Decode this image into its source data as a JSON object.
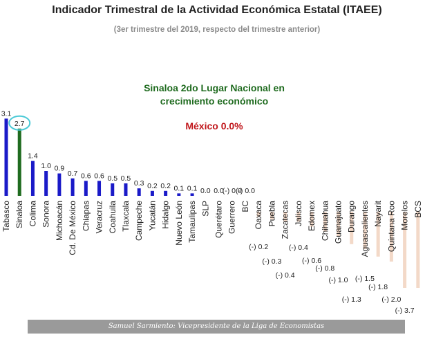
{
  "header": {
    "title": "Indicador Trimestral de la Actividad Económica Estatal (ITAEE)",
    "subtitle": "(3er trimestre del 2019, respecto del trimestre anterior)"
  },
  "annotations": {
    "highlight_line1": "Sinaloa 2do Lugar Nacional en",
    "highlight_line2": "crecimiento económico",
    "mexico": "México 0.0%"
  },
  "footer": {
    "credit": "Samuel Sarmiento: Vicepresidente de la Liga de Economistas"
  },
  "colors": {
    "positive": "#1a1ac8",
    "highlight": "#1f6b1f",
    "negative": "#f3d9c8",
    "circle": "#48c9d6"
  },
  "chart_data": {
    "type": "bar",
    "title": "Indicador Trimestral de la Actividad Económica Estatal (ITAEE)",
    "subtitle": "(3er trimestre del 2019, respecto del trimestre anterior)",
    "highlighted_category": "Sinaloa",
    "categories": [
      "Tabasco",
      "Sinaloa",
      "Colima",
      "Sonora",
      "Michoacán",
      "Cd. De México",
      "Chiapas",
      "Veracruz",
      "Coahuila",
      "Tlaxcala",
      "Campeche",
      "Yucatán",
      "Hidalgo",
      "Nuevo León",
      "Tamaulipas",
      "SLP",
      "Querétaro",
      "Guerrero",
      "BC",
      "Oaxaca",
      "Puebla",
      "Zacatecas",
      "Jalisco",
      "Edomex",
      "Chihuahua",
      "Guanajuato",
      "Durango",
      "Aguascalientes",
      "Nayarit",
      "Quintana Roo",
      "Morelos",
      "BCS"
    ],
    "values": [
      3.1,
      2.7,
      1.4,
      1.0,
      0.9,
      0.7,
      0.6,
      0.6,
      0.5,
      0.5,
      0.3,
      0.2,
      0.2,
      0.1,
      0.1,
      0.0,
      0.0,
      0.0,
      0.0,
      -0.2,
      -0.3,
      -0.4,
      -0.4,
      -0.6,
      -0.8,
      -1.0,
      -1.3,
      -1.5,
      -1.8,
      -2.0,
      -3.7,
      -3.7
    ],
    "labels": [
      "3.1",
      "2.7",
      "1.4",
      "1.0",
      "0.9",
      "0.7",
      "0.6",
      "0.6",
      "0.5",
      "0.5",
      "0.3",
      "0.2",
      "0.2",
      "0.1",
      "0.1",
      "0.0",
      "0.0",
      "(-) 0.0",
      "(-) 0.0",
      "(-) 0.2",
      "(-) 0.3",
      "(-) 0.4",
      "(-) 0.4",
      "(-) 0.6",
      "(-) 0.8",
      "(-) 1.0",
      "(-) 1.3",
      "(-) 1.5",
      "(-) 1.8",
      "(-) 2.0",
      "(-) 3.7",
      ""
    ],
    "grid": false,
    "legend": "none"
  }
}
